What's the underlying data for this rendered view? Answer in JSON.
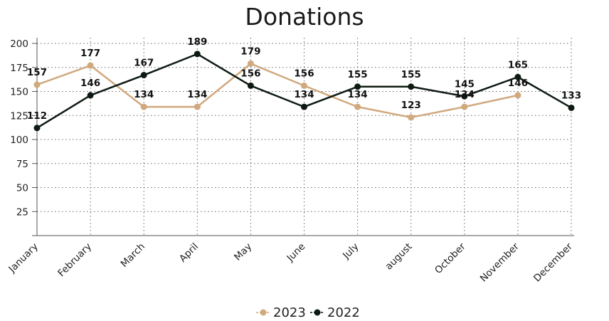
{
  "chart_data": {
    "type": "line",
    "title": "Donations",
    "categories": [
      "January",
      "February",
      "March",
      "April",
      "May",
      "June",
      "July",
      "august",
      "October",
      "November",
      "December"
    ],
    "ylim": [
      0,
      200
    ],
    "yticks": [
      25,
      50,
      75,
      100,
      125,
      150,
      175,
      200
    ],
    "grid": true,
    "legend_position": "bottom",
    "series": [
      {
        "name": "2023",
        "color": "#d0a97e",
        "values": [
          157,
          177,
          134,
          134,
          179,
          156,
          134,
          123,
          134,
          146,
          null
        ]
      },
      {
        "name": "2022",
        "color": "#0d1a12",
        "values": [
          112,
          146,
          167,
          189,
          156,
          134,
          155,
          155,
          145,
          165,
          133
        ]
      }
    ]
  }
}
